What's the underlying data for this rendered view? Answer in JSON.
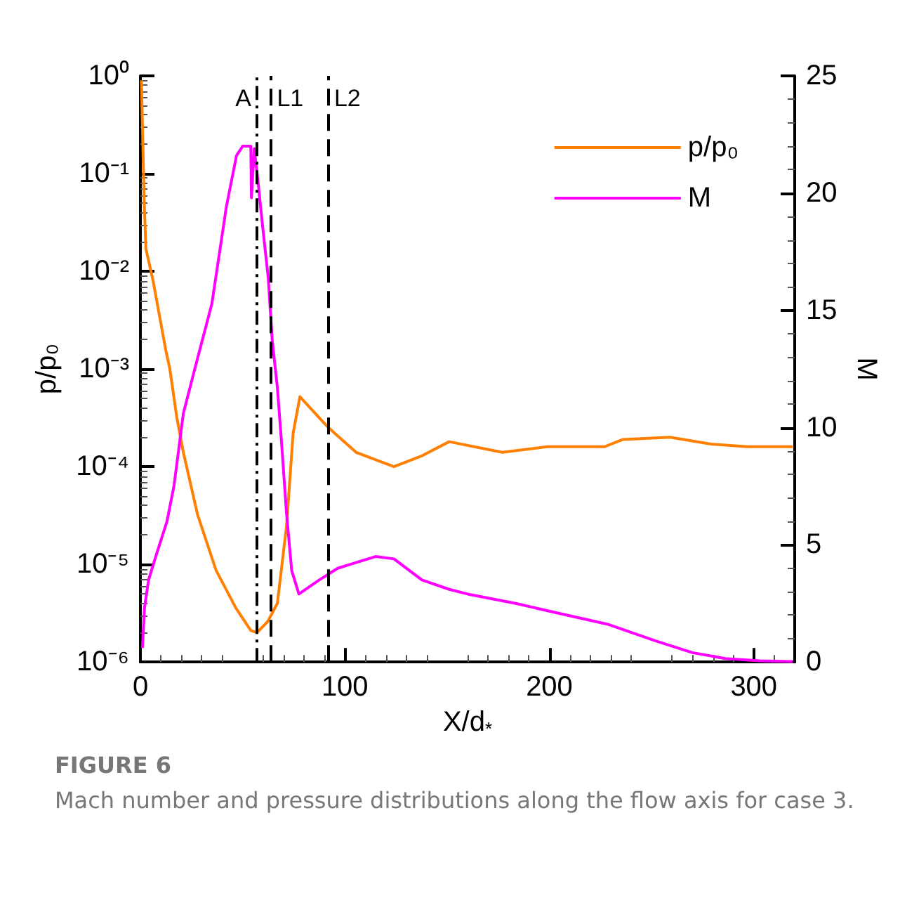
{
  "chart_data": {
    "type": "line",
    "xlabel": "X/d$_{*}$",
    "ylabel": "p/p₀",
    "y2label": "M",
    "xlim": [
      0,
      320
    ],
    "xticks": [
      0,
      100,
      200,
      300
    ],
    "ylim": [
      1e-06,
      1
    ],
    "log": "y",
    "yticks": [
      {
        "value": 1e-06,
        "label": "10⁻⁶"
      },
      {
        "value": 1e-05,
        "label": "10⁻⁵"
      },
      {
        "value": 0.0001,
        "label": "10⁻⁴"
      },
      {
        "value": 0.001,
        "label": "10⁻³"
      },
      {
        "value": 0.01,
        "label": "10⁻²"
      },
      {
        "value": 0.1,
        "label": "10⁻¹"
      },
      {
        "value": 1,
        "label": "10⁰"
      }
    ],
    "y2lim": [
      0,
      25
    ],
    "y2ticks": [
      0,
      5,
      10,
      15,
      20,
      25
    ],
    "legend": "top right",
    "grid": false,
    "line_style": "solid",
    "marker": "none",
    "series": [
      {
        "name": "p/p₀",
        "color": "#ff8000",
        "x": [
          0.5,
          1.8,
          2.7,
          6.2,
          12.3,
          14.4,
          17.8,
          21,
          28,
          37,
          46.6,
          54,
          57,
          62.3,
          67,
          71.5,
          74.7,
          78,
          92,
          105.5,
          124,
          138,
          151,
          177,
          199,
          227,
          236,
          259,
          279,
          297,
          319
        ],
        "values": [
          0.9,
          0.056,
          0.017,
          0.008,
          0.0016,
          0.001,
          0.00032,
          0.00014,
          3.2e-05,
          8.7e-06,
          3.6e-06,
          2.1e-06,
          2e-06,
          2.6e-06,
          4e-06,
          2.5e-05,
          0.00022,
          0.00052,
          0.00025,
          0.00014,
          0.0001,
          0.00013,
          0.00018,
          0.00014,
          0.00016,
          0.00016,
          0.00019,
          0.0002,
          0.00017,
          0.00016,
          0.00016
        ]
      },
      {
        "name": "M",
        "color": "#ff00ff",
        "axis": "y2",
        "x": [
          1,
          2,
          4,
          7.5,
          13,
          16.4,
          21,
          26,
          35,
          42,
          47,
          50,
          54,
          54.3,
          55.7,
          57.5,
          60,
          62.5,
          64.5,
          67,
          69,
          71.5,
          74,
          77.5,
          87.5,
          96.5,
          115,
          124,
          137.7,
          151,
          160,
          183.5,
          206,
          229,
          252,
          270,
          286,
          303,
          319
        ],
        "values": [
          0.6,
          2.3,
          3.5,
          4.5,
          6,
          7.5,
          10.6,
          12.3,
          15.3,
          19.4,
          21.6,
          22,
          22,
          19.8,
          21.9,
          20.5,
          18.4,
          16.4,
          13.7,
          11.7,
          9.4,
          6.3,
          3.9,
          2.9,
          3.5,
          4,
          4.5,
          4.4,
          3.5,
          3.1,
          2.9,
          2.5,
          2.05,
          1.6,
          0.9,
          0.4,
          0.15,
          0.05,
          0.02
        ]
      }
    ],
    "ref_lines": [
      {
        "axis": "x",
        "value": 57,
        "label": "A",
        "line_style": "dashdot",
        "color": "#000000"
      },
      {
        "axis": "x",
        "value": 64,
        "label": "L1",
        "line_style": "dashed",
        "color": "#000000"
      },
      {
        "axis": "x",
        "value": 92,
        "label": "L2",
        "line_style": "dashed",
        "color": "#000000"
      }
    ],
    "annotations": [
      "FIGURE 6",
      "Mach number and pressure distributions along the flow axis for case 3."
    ]
  }
}
